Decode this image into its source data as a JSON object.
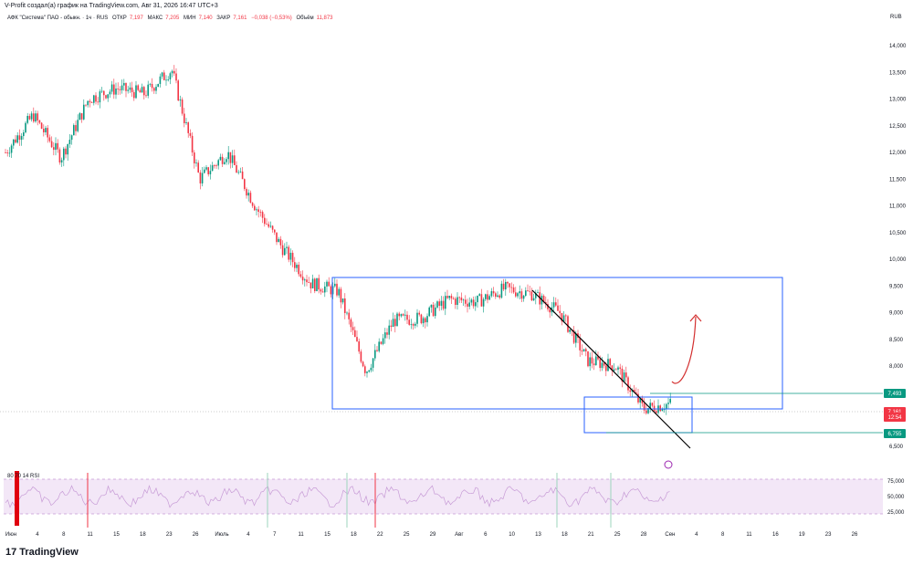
{
  "header": {
    "attribution": "V-Profit создал(а) график на TradingView.com, Авг 31, 2026 16:47 UTC+3"
  },
  "legend": {
    "symbol": "АФК \"Система\" ПАО - обыкн. · 1ч · RUS",
    "open_label": "ОТКР",
    "open_value": "7,197",
    "high_label": "МАКС",
    "high_value": "7,205",
    "low_label": "МИН",
    "low_value": "7,140",
    "close_label": "ЗАКР",
    "close_value": "7,161",
    "change": "−0,038 (−0,53%)",
    "volume_label": "Объём",
    "volume_value": "11,873"
  },
  "currency": "RUB",
  "rsi": {
    "label": "80 70 14 RSI",
    "ticks": [
      "75,000",
      "50,000",
      "25,000"
    ]
  },
  "brand": {
    "logo_mark": "17",
    "name": "TradingView"
  },
  "colors": {
    "up": "#089981",
    "down": "#f23645",
    "box": "#2962ff",
    "line_label": "#089981",
    "rsi_fill": "#f3e7f7",
    "rsi_line": "#c79bd6"
  },
  "chart_data": {
    "type": "candlestick",
    "timeframe": "1h",
    "y_ticks": [
      "14,000",
      "13,500",
      "13,000",
      "12,500",
      "12,000",
      "11,500",
      "11,000",
      "10,500",
      "10,000",
      "9,500",
      "9,000",
      "8,500",
      "8,000",
      "6,500"
    ],
    "x_ticks": [
      "Июн",
      "4",
      "8",
      "11",
      "15",
      "18",
      "23",
      "26",
      "Июль",
      "4",
      "7",
      "11",
      "15",
      "18",
      "22",
      "25",
      "29",
      "Авг",
      "6",
      "10",
      "13",
      "18",
      "21",
      "25",
      "28",
      "Сен",
      "4",
      "8",
      "11",
      "16",
      "19",
      "23",
      "26"
    ],
    "price_trend": [
      [
        "Июн",
        12000
      ],
      [
        "4",
        12700
      ],
      [
        "8",
        11900
      ],
      [
        "11",
        13000
      ],
      [
        "15",
        13200
      ],
      [
        "18",
        13100
      ],
      [
        "23",
        13550
      ],
      [
        "26",
        11500
      ],
      [
        "Июль",
        12000
      ],
      [
        "4",
        11000
      ],
      [
        "7",
        10200
      ],
      [
        "11",
        9550
      ],
      [
        "15",
        9400
      ],
      [
        "18",
        7900
      ],
      [
        "22",
        8850
      ],
      [
        "25",
        8900
      ],
      [
        "29",
        9250
      ],
      [
        "Авг",
        9200
      ],
      [
        "6",
        9450
      ],
      [
        "10",
        9350
      ],
      [
        "13",
        9000
      ],
      [
        "18",
        8100
      ],
      [
        "21",
        8000
      ],
      [
        "25",
        7200
      ],
      [
        "28",
        7300
      ]
    ],
    "price_labels": [
      {
        "value": "7,493",
        "kind": "level"
      },
      {
        "value": "7,161",
        "kind": "last"
      },
      {
        "value": "12:54",
        "kind": "countdown"
      },
      {
        "value": "6,755",
        "kind": "level"
      }
    ],
    "annotations": [
      "range box",
      "small range box",
      "downtrend line",
      "projected breakout arrow"
    ]
  }
}
